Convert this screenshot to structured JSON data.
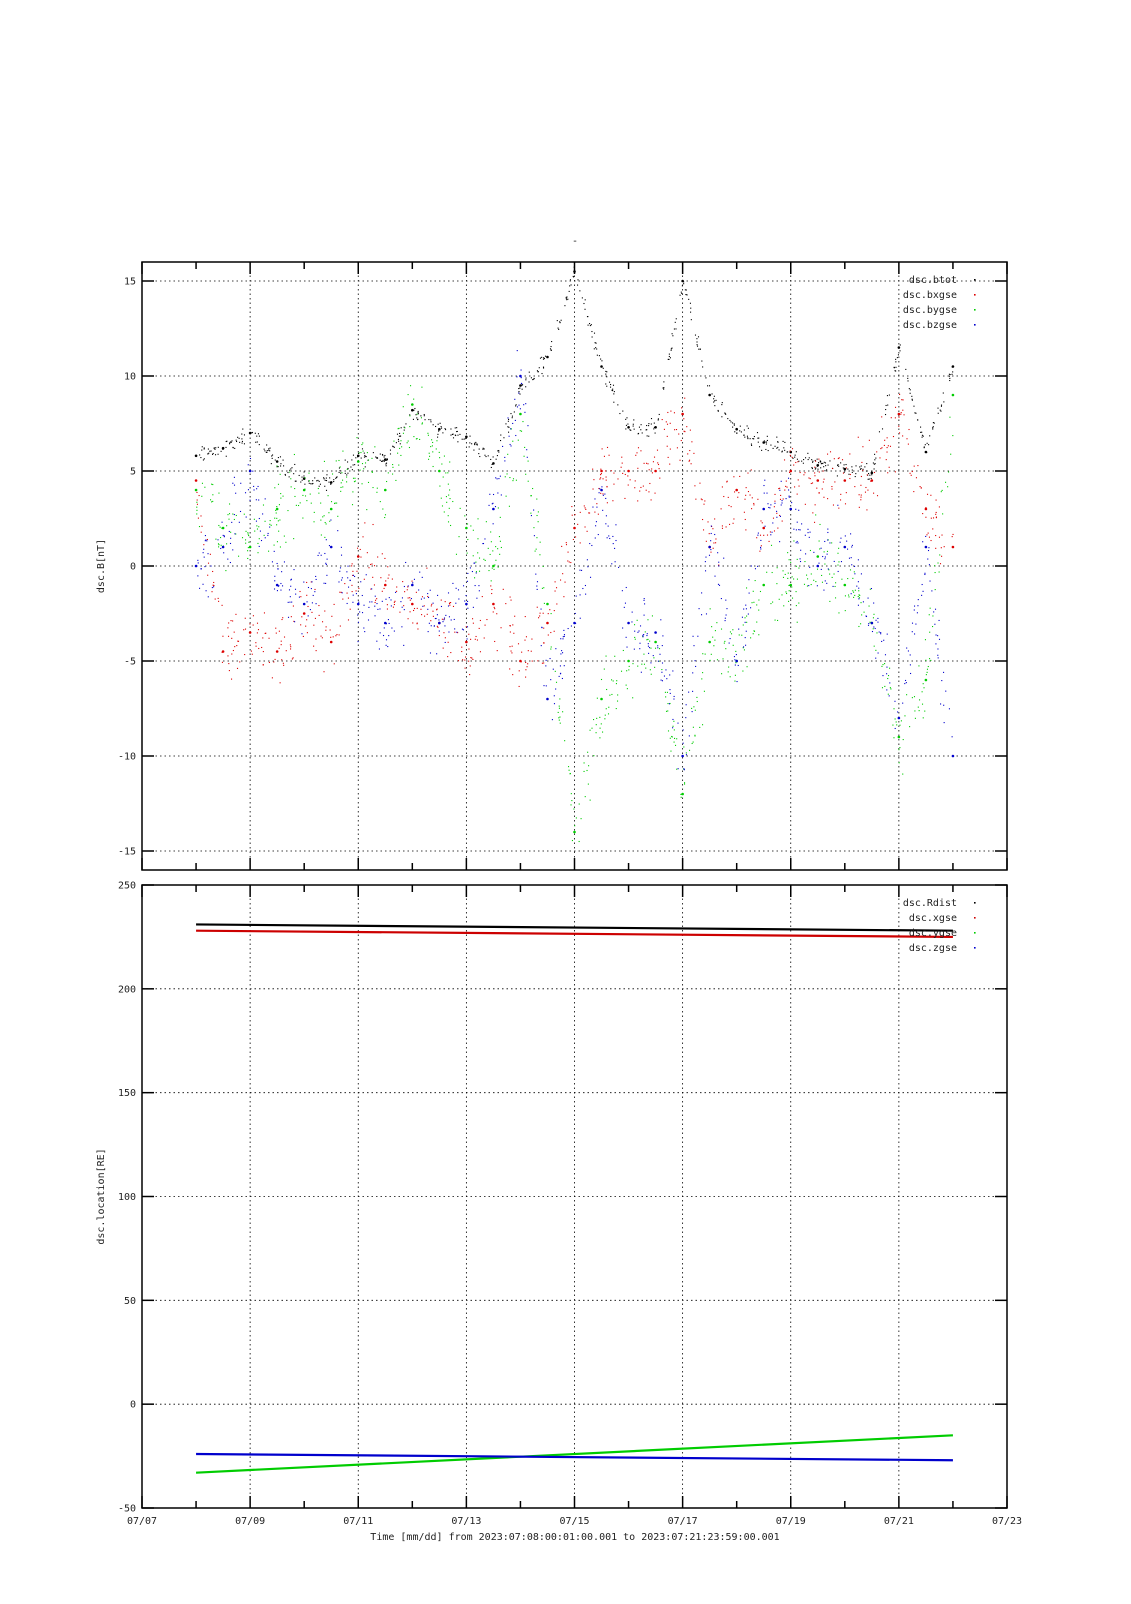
{
  "figure": {
    "top_title": "-",
    "xlabel_line": "Time [mm/dd]  from 2023:07:08:00:01:00.001  to  2023:07:21:23:59:00.001"
  },
  "x_axis": {
    "range": [
      "2023-07-07",
      "2023-07-23"
    ],
    "tick_labels": [
      "07/07",
      "07/09",
      "07/11",
      "07/13",
      "07/15",
      "07/17",
      "07/19",
      "07/21",
      "07/23"
    ],
    "grid": true
  },
  "chart_data": [
    {
      "type": "scatter",
      "ylabel": "dsc.B[nT]",
      "ylim": [
        -16,
        16
      ],
      "yticks": [
        -15,
        -10,
        -5,
        0,
        5,
        10,
        15
      ],
      "legend_position": "top-right",
      "grid": true,
      "series": [
        {
          "name": "dsc.btot",
          "color": "#000000",
          "x": [
            "07/08 00:00",
            "07/08 12:00",
            "07/09 00:00",
            "07/09 12:00",
            "07/10 00:00",
            "07/10 12:00",
            "07/11 00:00",
            "07/11 12:00",
            "07/12 00:00",
            "07/12 12:00",
            "07/13 00:00",
            "07/13 12:00",
            "07/14 00:00",
            "07/14 12:00",
            "07/15 00:00",
            "07/15 12:00",
            "07/16 00:00",
            "07/16 12:00",
            "07/17 00:00",
            "07/17 12:00",
            "07/18 00:00",
            "07/18 12:00",
            "07/19 00:00",
            "07/19 12:00",
            "07/20 00:00",
            "07/20 12:00",
            "07/21 00:00",
            "07/21 12:00",
            "07/22 00:00"
          ],
          "values": [
            5.8,
            6.2,
            7.0,
            5.5,
            4.6,
            4.4,
            5.8,
            5.6,
            8.2,
            7.2,
            6.8,
            5.4,
            9.5,
            11.0,
            15.5,
            10.5,
            7.3,
            7.3,
            15.0,
            9.0,
            7.2,
            6.5,
            6.0,
            5.3,
            5.1,
            4.9,
            11.5,
            6.0,
            10.5
          ]
        },
        {
          "name": "dsc.bxgse",
          "color": "#dd0000",
          "x": [
            "07/08 00:00",
            "07/08 12:00",
            "07/09 00:00",
            "07/09 12:00",
            "07/10 00:00",
            "07/10 12:00",
            "07/11 00:00",
            "07/11 12:00",
            "07/12 00:00",
            "07/12 12:00",
            "07/13 00:00",
            "07/13 12:00",
            "07/14 00:00",
            "07/14 12:00",
            "07/15 00:00",
            "07/15 12:00",
            "07/16 00:00",
            "07/16 12:00",
            "07/17 00:00",
            "07/17 12:00",
            "07/18 00:00",
            "07/18 12:00",
            "07/19 00:00",
            "07/19 12:00",
            "07/20 00:00",
            "07/20 12:00",
            "07/21 00:00",
            "07/21 12:00",
            "07/22 00:00"
          ],
          "values": [
            4.5,
            -4.5,
            -3.5,
            -4.5,
            -2.5,
            -4.0,
            0.5,
            -1.0,
            -2.0,
            -3.0,
            -4.0,
            -2.0,
            -5.0,
            -3.0,
            2.0,
            5.0,
            5.0,
            5.0,
            8.0,
            1.0,
            4.0,
            2.0,
            5.0,
            4.5,
            4.5,
            4.5,
            8.0,
            3.0,
            1.0
          ]
        },
        {
          "name": "dsc.bygse",
          "color": "#00cc00",
          "x": [
            "07/08 00:00",
            "07/08 12:00",
            "07/09 00:00",
            "07/09 12:00",
            "07/10 00:00",
            "07/10 12:00",
            "07/11 00:00",
            "07/11 12:00",
            "07/12 00:00",
            "07/12 12:00",
            "07/13 00:00",
            "07/13 12:00",
            "07/14 00:00",
            "07/14 12:00",
            "07/15 00:00",
            "07/15 12:00",
            "07/16 00:00",
            "07/16 12:00",
            "07/17 00:00",
            "07/17 12:00",
            "07/18 00:00",
            "07/18 12:00",
            "07/19 00:00",
            "07/19 12:00",
            "07/20 00:00",
            "07/20 12:00",
            "07/21 00:00",
            "07/21 12:00",
            "07/22 00:00"
          ],
          "values": [
            4.0,
            2.0,
            1.0,
            3.0,
            4.0,
            3.0,
            5.5,
            4.0,
            8.5,
            5.0,
            2.0,
            0.0,
            8.0,
            -2.0,
            -14.0,
            -7.0,
            -5.0,
            -4.0,
            -12.0,
            -4.0,
            -5.0,
            -1.0,
            -1.0,
            0.5,
            -1.0,
            -3.0,
            -9.0,
            -6.0,
            9.0
          ]
        },
        {
          "name": "dsc.bzgse",
          "color": "#0000cc",
          "x": [
            "07/08 00:00",
            "07/08 12:00",
            "07/09 00:00",
            "07/09 12:00",
            "07/10 00:00",
            "07/10 12:00",
            "07/11 00:00",
            "07/11 12:00",
            "07/12 00:00",
            "07/12 12:00",
            "07/13 00:00",
            "07/13 12:00",
            "07/14 00:00",
            "07/14 12:00",
            "07/15 00:00",
            "07/15 12:00",
            "07/16 00:00",
            "07/16 12:00",
            "07/17 00:00",
            "07/17 12:00",
            "07/18 00:00",
            "07/18 12:00",
            "07/19 00:00",
            "07/19 12:00",
            "07/20 00:00",
            "07/20 12:00",
            "07/21 00:00",
            "07/21 12:00",
            "07/22 00:00"
          ],
          "values": [
            0.0,
            1.0,
            5.0,
            -1.0,
            -2.0,
            1.0,
            -2.0,
            -3.0,
            -1.0,
            -3.0,
            -2.0,
            3.0,
            10.0,
            -7.0,
            -3.0,
            4.0,
            -3.0,
            -3.5,
            -10.0,
            1.0,
            -5.0,
            3.0,
            3.0,
            0.0,
            1.0,
            -3.0,
            -8.0,
            1.0,
            -10.0
          ]
        }
      ]
    },
    {
      "type": "line",
      "ylabel": "dsc.location[RE]",
      "ylim": [
        -50,
        250
      ],
      "yticks": [
        -50,
        0,
        50,
        100,
        150,
        200,
        250
      ],
      "legend_position": "top-right",
      "grid": true,
      "series": [
        {
          "name": "dsc.Rdist",
          "color": "#000000",
          "x": [
            "07/08 00:00",
            "07/22 00:00"
          ],
          "values": [
            231,
            228
          ]
        },
        {
          "name": "dsc.xgse",
          "color": "#cc0000",
          "x": [
            "07/08 00:00",
            "07/22 00:00"
          ],
          "values": [
            228,
            225
          ]
        },
        {
          "name": "dsc.ygse",
          "color": "#00cc00",
          "x": [
            "07/08 00:00",
            "07/22 00:00"
          ],
          "values": [
            -33,
            -15
          ]
        },
        {
          "name": "dsc.zgse",
          "color": "#0000cc",
          "x": [
            "07/08 00:00",
            "07/22 00:00"
          ],
          "values": [
            -24,
            -27
          ]
        }
      ]
    }
  ]
}
